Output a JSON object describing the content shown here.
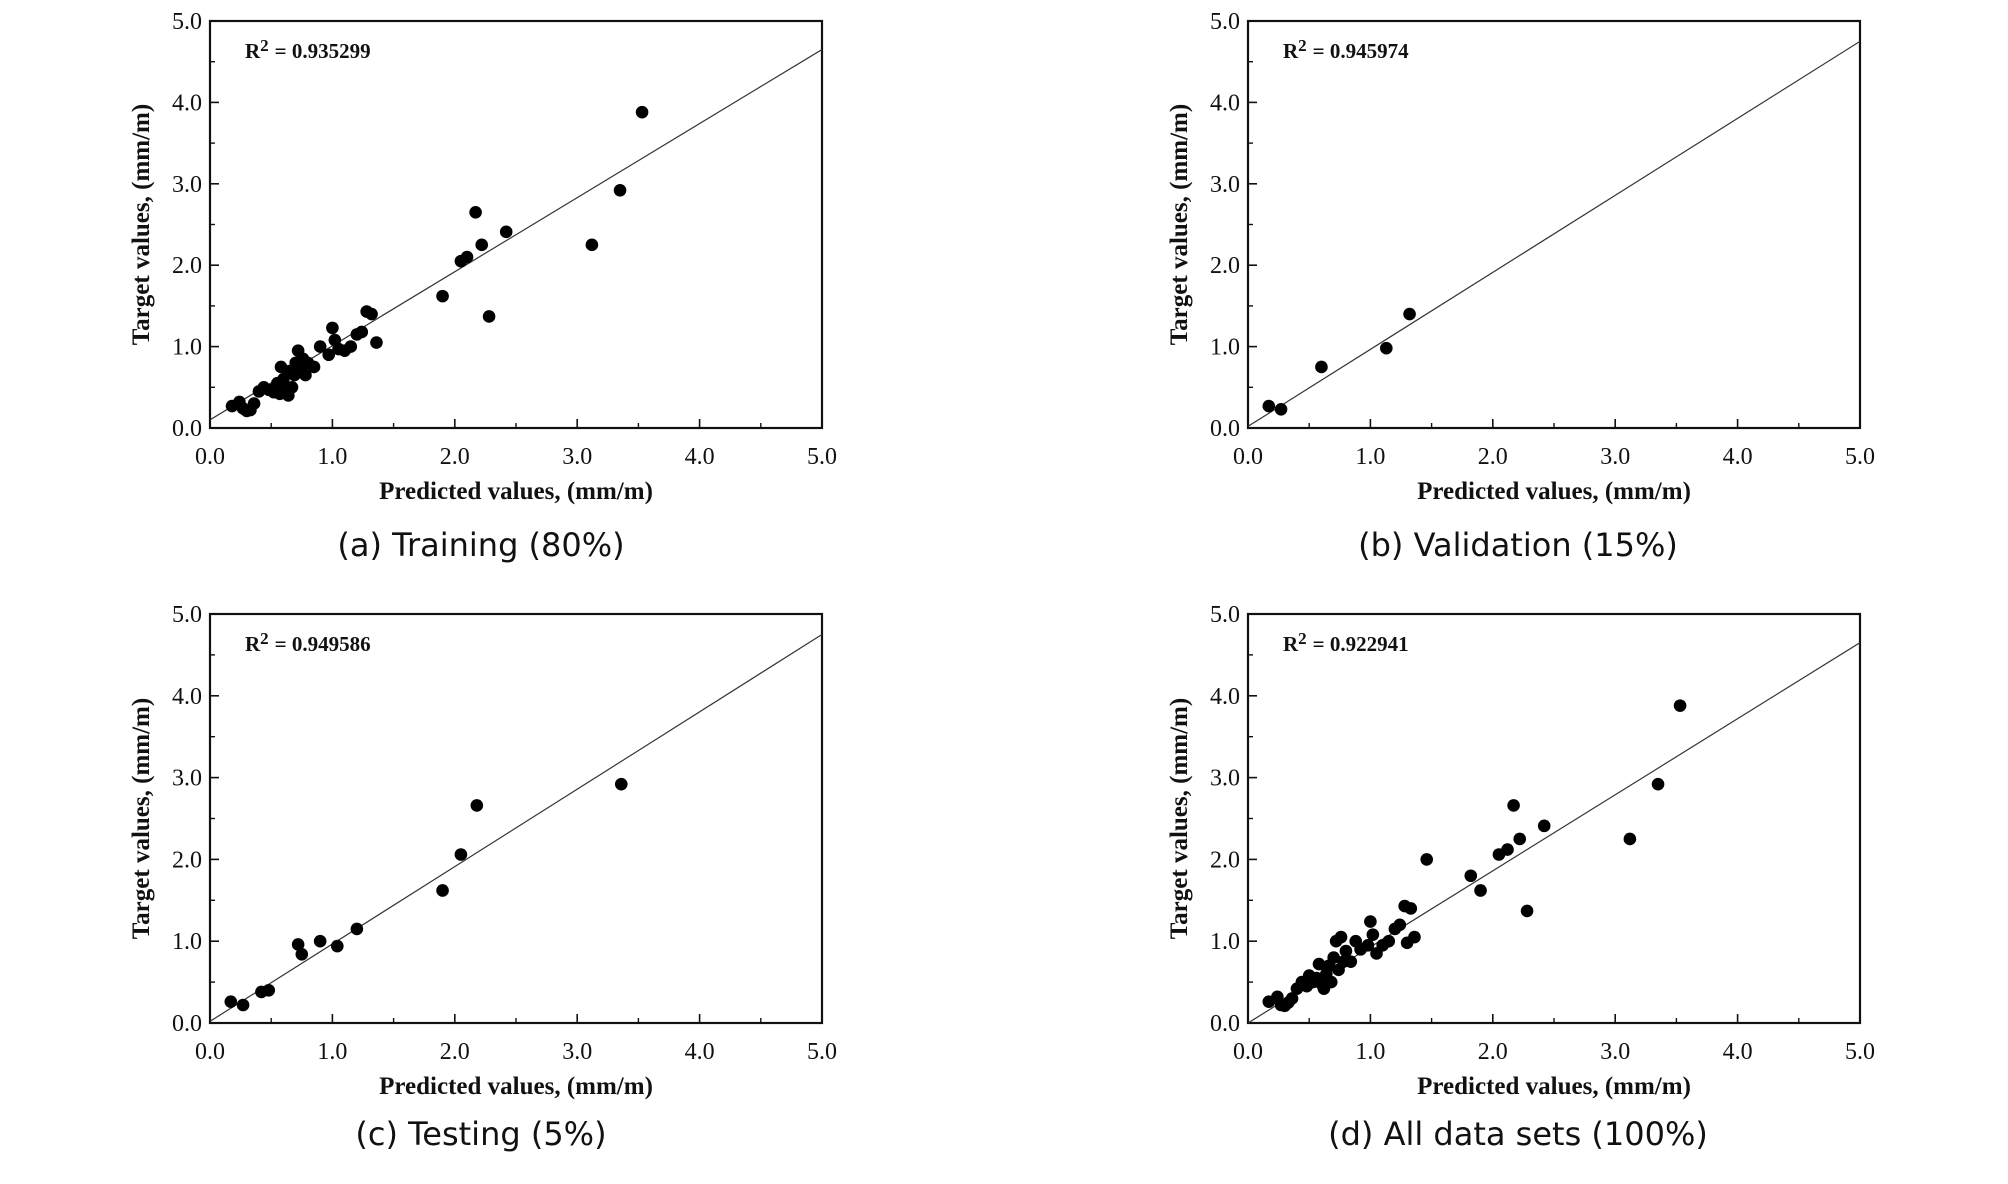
{
  "chart_data": [
    {
      "type": "scatter",
      "caption": "(a) Training (80%)",
      "r2_label": "R",
      "r2_sup": "2",
      "r2_value": "= 0.935299",
      "xlabel": "Predicted values, (mm/m)",
      "ylabel": "Target values, (mm/m)",
      "xlim": [
        0,
        5
      ],
      "ylim": [
        0,
        5
      ],
      "xticks": [
        "0.0",
        "1.0",
        "2.0",
        "3.0",
        "4.0",
        "5.0"
      ],
      "yticks": [
        "0.0",
        "1.0",
        "2.0",
        "3.0",
        "4.0",
        "5.0"
      ],
      "fit_line": {
        "x": [
          0,
          5
        ],
        "y": [
          0.1,
          4.65
        ]
      },
      "points": [
        [
          0.18,
          0.27
        ],
        [
          0.24,
          0.32
        ],
        [
          0.27,
          0.24
        ],
        [
          0.3,
          0.21
        ],
        [
          0.33,
          0.22
        ],
        [
          0.36,
          0.3
        ],
        [
          0.4,
          0.45
        ],
        [
          0.44,
          0.5
        ],
        [
          0.48,
          0.47
        ],
        [
          0.52,
          0.44
        ],
        [
          0.55,
          0.55
        ],
        [
          0.57,
          0.42
        ],
        [
          0.58,
          0.75
        ],
        [
          0.6,
          0.6
        ],
        [
          0.62,
          0.5
        ],
        [
          0.64,
          0.4
        ],
        [
          0.65,
          0.7
        ],
        [
          0.67,
          0.5
        ],
        [
          0.69,
          0.65
        ],
        [
          0.7,
          0.8
        ],
        [
          0.72,
          0.95
        ],
        [
          0.74,
          0.7
        ],
        [
          0.76,
          0.85
        ],
        [
          0.78,
          0.65
        ],
        [
          0.8,
          0.8
        ],
        [
          0.85,
          0.75
        ],
        [
          0.9,
          1.0
        ],
        [
          0.97,
          0.9
        ],
        [
          1.0,
          1.23
        ],
        [
          1.02,
          1.08
        ],
        [
          1.05,
          0.97
        ],
        [
          1.1,
          0.95
        ],
        [
          1.15,
          1.0
        ],
        [
          1.2,
          1.15
        ],
        [
          1.24,
          1.18
        ],
        [
          1.28,
          1.43
        ],
        [
          1.32,
          1.4
        ],
        [
          1.36,
          1.05
        ],
        [
          1.9,
          1.62
        ],
        [
          2.05,
          2.05
        ],
        [
          2.1,
          2.1
        ],
        [
          2.17,
          2.65
        ],
        [
          2.22,
          2.25
        ],
        [
          2.28,
          1.37
        ],
        [
          2.42,
          2.41
        ],
        [
          3.12,
          2.25
        ],
        [
          3.35,
          2.92
        ],
        [
          3.53,
          3.88
        ]
      ]
    },
    {
      "type": "scatter",
      "caption": "(b) Validation (15%)",
      "r2_label": "R",
      "r2_sup": "2",
      "r2_value": "= 0.945974",
      "xlabel": "Predicted values, (mm/m)",
      "ylabel": "Target values, (mm/m)",
      "xlim": [
        0,
        5
      ],
      "ylim": [
        0,
        5
      ],
      "xticks": [
        "0.0",
        "1.0",
        "2.0",
        "3.0",
        "4.0",
        "5.0"
      ],
      "yticks": [
        "0.0",
        "1.0",
        "2.0",
        "3.0",
        "4.0",
        "5.0"
      ],
      "fit_line": {
        "x": [
          0,
          5
        ],
        "y": [
          0.02,
          4.75
        ]
      },
      "points": [
        [
          0.17,
          0.27
        ],
        [
          0.27,
          0.23
        ],
        [
          0.6,
          0.75
        ],
        [
          1.13,
          0.98
        ],
        [
          1.32,
          1.4
        ]
      ]
    },
    {
      "type": "scatter",
      "caption": "(c) Testing (5%)",
      "r2_label": "R",
      "r2_sup": "2",
      "r2_value": "= 0.949586",
      "xlabel": "Predicted values, (mm/m)",
      "ylabel": "Target values, (mm/m)",
      "xlim": [
        0,
        5
      ],
      "ylim": [
        0,
        5
      ],
      "xticks": [
        "0.0",
        "1.0",
        "2.0",
        "3.0",
        "4.0",
        "5.0"
      ],
      "yticks": [
        "0.0",
        "1.0",
        "2.0",
        "3.0",
        "4.0",
        "5.0"
      ],
      "fit_line": {
        "x": [
          0,
          5
        ],
        "y": [
          0.02,
          4.75
        ]
      },
      "points": [
        [
          0.17,
          0.26
        ],
        [
          0.27,
          0.22
        ],
        [
          0.42,
          0.38
        ],
        [
          0.48,
          0.4
        ],
        [
          0.72,
          0.96
        ],
        [
          0.75,
          0.84
        ],
        [
          0.9,
          1.0
        ],
        [
          1.04,
          0.94
        ],
        [
          1.2,
          1.15
        ],
        [
          1.9,
          1.62
        ],
        [
          2.05,
          2.06
        ],
        [
          2.18,
          2.66
        ],
        [
          3.36,
          2.92
        ]
      ]
    },
    {
      "type": "scatter",
      "caption": "(d) All data sets (100%)",
      "r2_label": "R",
      "r2_sup": "2",
      "r2_value": "= 0.922941",
      "xlabel": "Predicted values, (mm/m)",
      "ylabel": "Target values, (mm/m)",
      "xlim": [
        0,
        5
      ],
      "ylim": [
        0,
        5
      ],
      "xticks": [
        "0.0",
        "1.0",
        "2.0",
        "3.0",
        "4.0",
        "5.0"
      ],
      "yticks": [
        "0.0",
        "1.0",
        "2.0",
        "3.0",
        "4.0",
        "5.0"
      ],
      "fit_line": {
        "x": [
          0,
          5
        ],
        "y": [
          0.0,
          4.65
        ]
      },
      "points": [
        [
          0.17,
          0.26
        ],
        [
          0.24,
          0.32
        ],
        [
          0.27,
          0.22
        ],
        [
          0.3,
          0.21
        ],
        [
          0.33,
          0.25
        ],
        [
          0.36,
          0.3
        ],
        [
          0.4,
          0.42
        ],
        [
          0.44,
          0.5
        ],
        [
          0.48,
          0.45
        ],
        [
          0.5,
          0.58
        ],
        [
          0.53,
          0.5
        ],
        [
          0.56,
          0.55
        ],
        [
          0.58,
          0.72
        ],
        [
          0.6,
          0.48
        ],
        [
          0.62,
          0.42
        ],
        [
          0.64,
          0.6
        ],
        [
          0.66,
          0.7
        ],
        [
          0.68,
          0.5
        ],
        [
          0.7,
          0.8
        ],
        [
          0.72,
          1.0
        ],
        [
          0.74,
          0.65
        ],
        [
          0.76,
          1.05
        ],
        [
          0.78,
          0.75
        ],
        [
          0.8,
          0.88
        ],
        [
          0.84,
          0.75
        ],
        [
          0.88,
          1.0
        ],
        [
          0.92,
          0.9
        ],
        [
          0.98,
          0.95
        ],
        [
          1.0,
          1.24
        ],
        [
          1.02,
          1.08
        ],
        [
          1.05,
          0.85
        ],
        [
          1.1,
          0.95
        ],
        [
          1.15,
          1.0
        ],
        [
          1.2,
          1.15
        ],
        [
          1.24,
          1.2
        ],
        [
          1.28,
          1.43
        ],
        [
          1.3,
          0.98
        ],
        [
          1.33,
          1.4
        ],
        [
          1.36,
          1.05
        ],
        [
          1.46,
          2.0
        ],
        [
          1.82,
          1.8
        ],
        [
          1.9,
          1.62
        ],
        [
          2.05,
          2.06
        ],
        [
          2.12,
          2.12
        ],
        [
          2.17,
          2.66
        ],
        [
          2.22,
          2.25
        ],
        [
          2.28,
          1.37
        ],
        [
          2.42,
          2.41
        ],
        [
          3.12,
          2.25
        ],
        [
          3.35,
          2.92
        ],
        [
          3.53,
          3.88
        ]
      ]
    }
  ]
}
